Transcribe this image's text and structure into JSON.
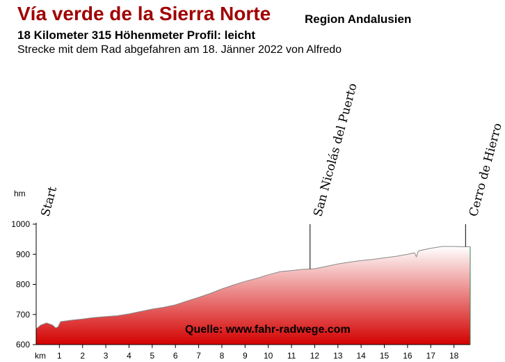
{
  "header": {
    "title": "Vía verde de la Sierra Norte",
    "region": "Region Andalusien",
    "stats": "18 Kilometer  315 Höhenmeter  Profil: leicht",
    "subtitle": "Strecke mit dem Rad abgefahren am 18. Jänner 2022 von Alfredo"
  },
  "chart_data": {
    "type": "area",
    "ylabel": "hm",
    "xlabel": "km",
    "ylim": [
      600,
      1000
    ],
    "xlim": [
      0,
      18.7
    ],
    "yticks": [
      600,
      700,
      800,
      900,
      1000
    ],
    "xticks": [
      1,
      2,
      3,
      4,
      5,
      6,
      7,
      8,
      9,
      10,
      11,
      12,
      13,
      14,
      15,
      16,
      17,
      18
    ],
    "x": [
      0,
      0.2,
      0.45,
      0.7,
      0.85,
      0.95,
      1.05,
      1.5,
      2,
      2.5,
      3,
      3.5,
      4,
      4.5,
      5,
      5.5,
      6,
      6.5,
      7,
      7.5,
      8,
      8.5,
      9,
      9.5,
      10,
      10.5,
      11,
      11.5,
      12,
      12.5,
      13,
      13.5,
      14,
      14.5,
      15,
      15.5,
      16,
      16.3,
      16.38,
      16.45,
      16.5,
      17,
      17.5,
      18,
      18.3,
      18.7
    ],
    "y": [
      652,
      665,
      672,
      665,
      655,
      660,
      676,
      681,
      685,
      690,
      693,
      696,
      702,
      710,
      718,
      724,
      732,
      745,
      757,
      770,
      785,
      798,
      810,
      820,
      832,
      842,
      846,
      850,
      852,
      860,
      868,
      874,
      879,
      883,
      888,
      893,
      900,
      905,
      892,
      908,
      912,
      920,
      926,
      926,
      925,
      925
    ],
    "fill_top_color": "#ffffff",
    "fill_bottom_color": "#d40000",
    "line_color": "#888888",
    "annotations": [
      {
        "label": "Start",
        "x": 0
      },
      {
        "label": "San Nicolás del Puerto",
        "x": 11.8
      },
      {
        "label": "Cerro de Hierro",
        "x": 18.5
      }
    ],
    "source": "Quelle: www.fahr-radwege.com"
  }
}
